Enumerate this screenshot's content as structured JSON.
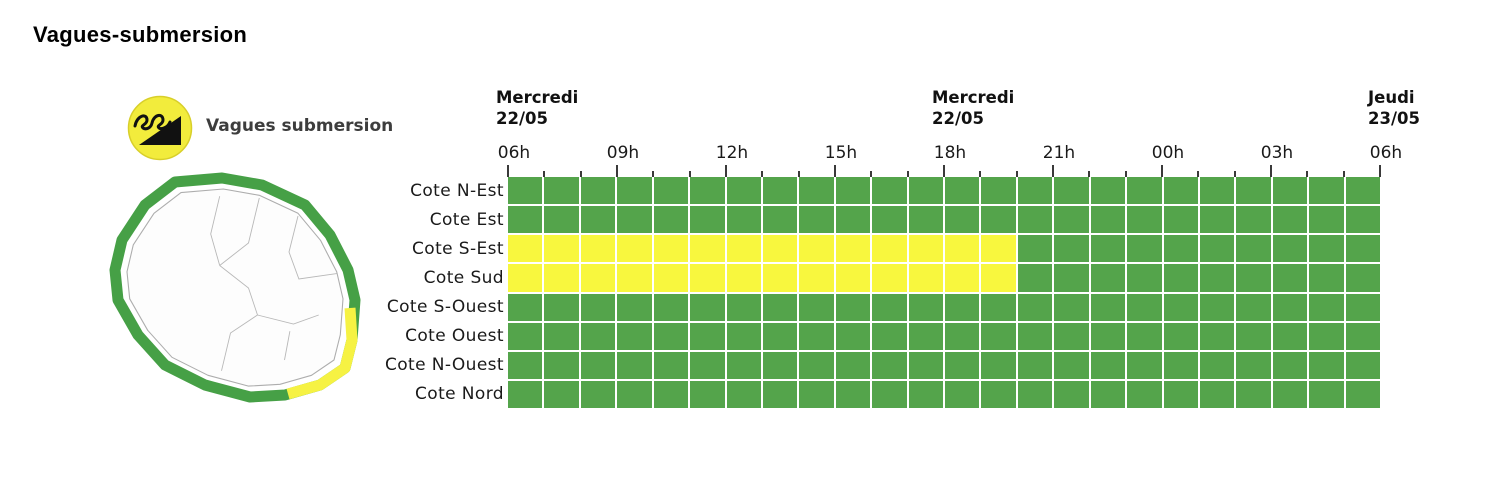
{
  "page": {
    "title": "Vagues-submersion"
  },
  "legend": {
    "icon": "vagues-submersion-icon",
    "label": "Vagues submersion"
  },
  "chart_data": {
    "type": "heatmap",
    "title": "Vagues-submersion",
    "x_axis": {
      "range_hours": [
        6,
        30
      ],
      "minor_tick_every_hours": 1,
      "tick_hours": [
        6,
        9,
        12,
        15,
        18,
        21,
        24,
        27,
        30
      ],
      "tick_labels": [
        "06h",
        "09h",
        "12h",
        "15h",
        "18h",
        "21h",
        "00h",
        "03h",
        "06h"
      ]
    },
    "day_headers": [
      {
        "day": "Mercredi",
        "date": "22/05",
        "tick_hour": 6
      },
      {
        "day": "Mercredi",
        "date": "22/05",
        "tick_hour": 18
      },
      {
        "day": "Jeudi",
        "date": "23/05",
        "tick_hour": 30
      }
    ],
    "levels": {
      "green": "#54a44b",
      "yellow": "#f8f73e"
    },
    "rows": [
      {
        "coast": "Cote N-Est",
        "segments": [
          {
            "level": "green",
            "from": 6,
            "to": 30
          }
        ]
      },
      {
        "coast": "Cote Est",
        "segments": [
          {
            "level": "green",
            "from": 6,
            "to": 30
          }
        ]
      },
      {
        "coast": "Cote S-Est",
        "segments": [
          {
            "level": "yellow",
            "from": 6,
            "to": 20
          },
          {
            "level": "green",
            "from": 20,
            "to": 30
          }
        ]
      },
      {
        "coast": "Cote Sud",
        "segments": [
          {
            "level": "yellow",
            "from": 6,
            "to": 20
          },
          {
            "level": "green",
            "from": 20,
            "to": 30
          }
        ]
      },
      {
        "coast": "Cote S-Ouest",
        "segments": [
          {
            "level": "green",
            "from": 6,
            "to": 30
          }
        ]
      },
      {
        "coast": "Cote Ouest",
        "segments": [
          {
            "level": "green",
            "from": 6,
            "to": 30
          }
        ]
      },
      {
        "coast": "Cote N-Ouest",
        "segments": [
          {
            "level": "green",
            "from": 6,
            "to": 30
          }
        ]
      },
      {
        "coast": "Cote Nord",
        "segments": [
          {
            "level": "green",
            "from": 6,
            "to": 30
          }
        ]
      }
    ],
    "map": {
      "coast_ring_default_level": "green",
      "coast_ring_alert": {
        "section": "south-east-coast",
        "level": "yellow"
      }
    }
  }
}
